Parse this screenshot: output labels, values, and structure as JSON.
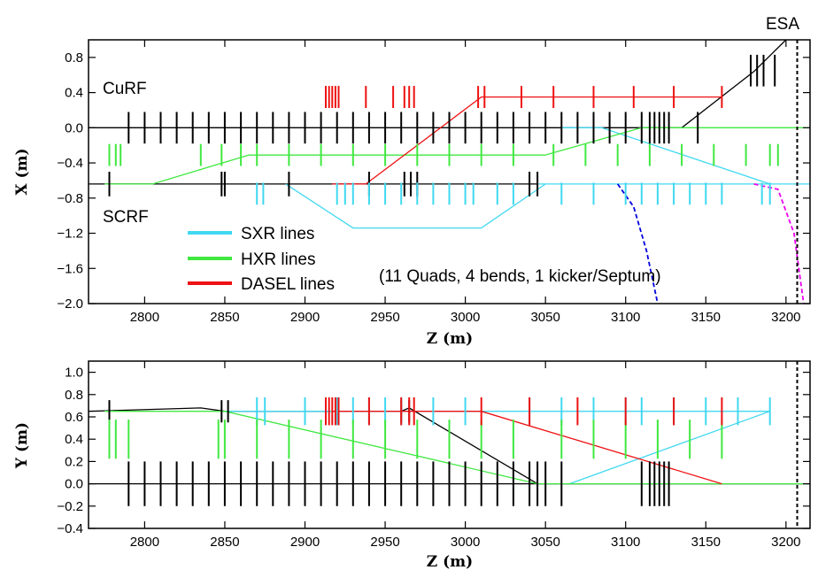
{
  "chart_data": [
    {
      "type": "line",
      "xlabel": "Z (m)",
      "ylabel": "X (m)",
      "xlim": [
        2765,
        3215
      ],
      "ylim": [
        -2.0,
        1.0
      ],
      "x_ticks": [
        2800,
        2850,
        2900,
        2950,
        3000,
        3050,
        3100,
        3150,
        3200
      ],
      "y_ticks": [
        -2.0,
        -1.6,
        -1.2,
        -0.8,
        -0.4,
        0.0,
        0.4,
        0.8
      ],
      "y_tick_labels": [
        "−2.0",
        "−1.6",
        "−1.2",
        "−0.8",
        "−0.4",
        "0.0",
        "0.4",
        "0.8"
      ],
      "annotations": [
        {
          "text": "ESA",
          "x": 3200,
          "y": 1.1
        },
        {
          "text": "CuRF",
          "x": 2775,
          "y": 0.4
        },
        {
          "text": "SCRF",
          "x": 2775,
          "y": -0.95
        },
        {
          "text": "(11 Quads, 4 bends, 1 kicker/Septum)",
          "x": 2995,
          "y": -1.67
        }
      ],
      "legend": {
        "placement": "lower-left",
        "entries": [
          {
            "label": "SXR lines",
            "color": "#40d8f0"
          },
          {
            "label": "HXR lines",
            "color": "#40e840"
          },
          {
            "label": "DASEL lines",
            "color": "#ee1111"
          }
        ]
      },
      "esa_marker_z": 3207,
      "series": [
        {
          "color": "#000000",
          "x": [
            2765,
            3135,
            3180,
            3200
          ],
          "y": [
            0.0,
            0.0,
            0.64,
            1.0
          ]
        },
        {
          "color": "#000000",
          "x": [
            2765,
            3045
          ],
          "y": [
            -0.64,
            -0.64
          ]
        },
        {
          "color": "#40d8f0",
          "x": [
            3045,
            3215
          ],
          "y": [
            -0.64,
            -0.64
          ]
        },
        {
          "color": "#40d8f0",
          "x": [
            2888,
            2930,
            3010,
            3050
          ],
          "y": [
            -0.64,
            -1.14,
            -1.14,
            -0.64
          ]
        },
        {
          "color": "#40d8f0",
          "x": [
            3060,
            3085,
            3190
          ],
          "y": [
            0.0,
            0.0,
            -0.64
          ]
        },
        {
          "color": "#40e840",
          "x": [
            2775,
            2805,
            2865,
            3050,
            3110,
            3215
          ],
          "y": [
            -0.64,
            -0.64,
            -0.31,
            -0.31,
            0.0,
            0.0
          ]
        },
        {
          "color": "#40e840",
          "x": [
            2865,
            2955,
            3050
          ],
          "y": [
            -0.31,
            -0.31,
            -0.31
          ]
        },
        {
          "color": "#ee1111",
          "x": [
            2917,
            2938,
            3010,
            3160
          ],
          "y": [
            -0.64,
            -0.64,
            0.35,
            0.35
          ]
        },
        {
          "color": "#0000dd",
          "dash": true,
          "x": [
            3095,
            3105,
            3113,
            3120
          ],
          "y": [
            -0.64,
            -0.9,
            -1.4,
            -2.0
          ]
        },
        {
          "color": "#ee00ee",
          "dash": true,
          "x": [
            3180,
            3195,
            3205,
            3211
          ],
          "y": [
            -0.64,
            -0.7,
            -1.2,
            -2.0
          ]
        }
      ],
      "elements": [
        {
          "color": "#000000",
          "z": [
            2790,
            2800,
            2810,
            2820,
            2830,
            2840,
            2850,
            2860,
            2870,
            2880,
            2890,
            2900,
            2910,
            2920,
            2930,
            2940,
            2950,
            2960,
            2970,
            2980,
            2990,
            3000,
            3010,
            3020,
            3030,
            3040,
            3050,
            3060,
            3070,
            3080,
            3090,
            3100,
            3110,
            3115,
            3118,
            3121,
            3124,
            3127,
            3145
          ],
          "y": 0.0,
          "h": 0.36
        },
        {
          "color": "#000000",
          "z": [
            2778,
            2848,
            2850,
            2890,
            2940,
            2962,
            2966,
            2970,
            3040,
            3045
          ],
          "y": -0.64,
          "h": 0.28
        },
        {
          "color": "#000000",
          "z": [
            3178,
            3182,
            3186,
            3193
          ],
          "y": 0.65,
          "h": 0.36
        },
        {
          "color": "#40d8f0",
          "z": [
            2870,
            2874,
            2920,
            2925,
            2930,
            2940,
            2950,
            2960,
            2970,
            2980,
            2990,
            3000,
            3005,
            3020,
            3030,
            3060,
            3080,
            3100,
            3110,
            3120,
            3130,
            3140,
            3150,
            3160,
            3185,
            3190
          ],
          "y": -0.75,
          "h": 0.25
        },
        {
          "color": "#40e840",
          "z": [
            2778,
            2782,
            2785,
            2835,
            2848,
            2860,
            2870,
            2890,
            2910,
            2930,
            2950,
            2970,
            2990,
            3010,
            3030,
            3055,
            3075,
            3095,
            3115,
            3135,
            3155,
            3175,
            3190,
            3195
          ],
          "y": -0.31,
          "h": 0.25
        },
        {
          "color": "#ee1111",
          "z": [
            2913,
            2915,
            2917,
            2919,
            2921,
            2938,
            2955,
            2962,
            2965,
            2968,
            3008,
            3012,
            3035,
            3055,
            3080,
            3105,
            3130,
            3160
          ],
          "y": 0.35,
          "h": 0.25
        }
      ]
    },
    {
      "type": "line",
      "xlabel": "Z (m)",
      "ylabel": "Y (m)",
      "xlim": [
        2765,
        3215
      ],
      "ylim": [
        -0.4,
        1.1
      ],
      "x_ticks": [
        2800,
        2850,
        2900,
        2950,
        3000,
        3050,
        3100,
        3150,
        3200
      ],
      "y_ticks": [
        -0.4,
        -0.2,
        0.0,
        0.2,
        0.4,
        0.6,
        0.8,
        1.0
      ],
      "y_tick_labels": [
        "−0.4",
        "−0.2",
        "0.0",
        "0.2",
        "0.4",
        "0.6",
        "0.8",
        "1.0"
      ],
      "esa_marker_z": 3207,
      "series": [
        {
          "color": "#000000",
          "x": [
            2765,
            3215
          ],
          "y": [
            0.0,
            0.0
          ]
        },
        {
          "color": "#000000",
          "x": [
            2765,
            2835,
            2850,
            2960,
            2965,
            3045
          ],
          "y": [
            0.65,
            0.68,
            0.65,
            0.65,
            0.68,
            0.0
          ]
        },
        {
          "color": "#40d8f0",
          "x": [
            2850,
            3190
          ],
          "y": [
            0.65,
            0.65
          ]
        },
        {
          "color": "#40d8f0",
          "x": [
            3065,
            3190
          ],
          "y": [
            0.0,
            0.65
          ]
        },
        {
          "color": "#40e840",
          "x": [
            2775,
            2850,
            3045,
            3215
          ],
          "y": [
            0.65,
            0.65,
            0.0,
            0.0
          ]
        },
        {
          "color": "#ee1111",
          "x": [
            2917,
            3010,
            3160
          ],
          "y": [
            0.65,
            0.65,
            0.0
          ]
        }
      ],
      "elements": [
        {
          "color": "#000000",
          "z": [
            2790,
            2800,
            2810,
            2820,
            2830,
            2840,
            2850,
            2860,
            2870,
            2880,
            2890,
            2900,
            2910,
            2920,
            2930,
            2940,
            2950,
            2960,
            2970,
            2980,
            2990,
            3000,
            3010,
            3020,
            3030,
            3040,
            3045,
            3050,
            3060,
            3110,
            3115,
            3118,
            3121,
            3124,
            3127
          ],
          "y": 0.0,
          "h": 0.4
        },
        {
          "color": "#000000",
          "z": [
            2778,
            2848,
            2852,
            2960,
            2965
          ],
          "y": 0.65,
          "h": 0.2
        },
        {
          "color": "#40d8f0",
          "z": [
            2870,
            2875,
            2900,
            2920,
            2930,
            2940,
            2950,
            2960,
            2980,
            3000,
            3040,
            3060,
            3080,
            3100,
            3110,
            3130,
            3150,
            3170,
            3190
          ],
          "y": 0.65,
          "h": 0.25
        },
        {
          "color": "#40e840",
          "z": [
            2778,
            2782,
            2790,
            2846,
            2850,
            2870,
            2890,
            2910,
            2930,
            2950,
            2970,
            2990,
            3010,
            3030,
            3060,
            3080,
            3100,
            3120,
            3140,
            3160
          ],
          "y": 0.4,
          "h": 0.35
        },
        {
          "color": "#ee1111",
          "z": [
            2913,
            2915,
            2917,
            2919,
            2921,
            2940,
            2960,
            2965,
            2968,
            3010,
            3040,
            3070,
            3100,
            3130,
            3160
          ],
          "y": 0.65,
          "h": 0.25
        }
      ]
    }
  ]
}
